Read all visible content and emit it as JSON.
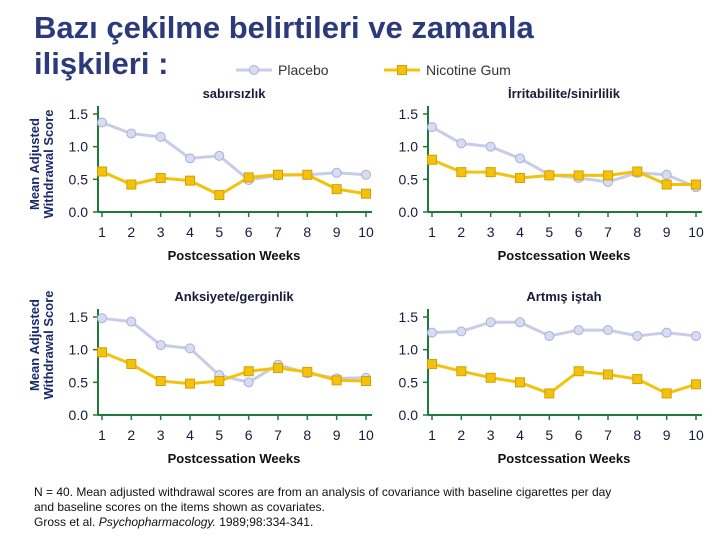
{
  "title_line1": "Bazı çekilme belirtileri ve zamanla",
  "title_line2": "ilişkileri :",
  "legend": {
    "placebo": "Placebo",
    "nicotine": "Nicotine Gum"
  },
  "y_axis_label_line1": "Mean Adjusted",
  "y_axis_label_line2": "Withdrawal Score",
  "colors": {
    "placebo": "#c8cce8",
    "placebo_marker": "#d8dcf2",
    "nicotine": "#f4c20d",
    "axis": "#1e7a3a",
    "title": "#2a3a7a",
    "tick_text": "#1a1a3a"
  },
  "footer": {
    "line1": "N = 40. Mean adjusted withdrawal scores are from an analysis of covariance with baseline cigarettes per day",
    "line2": "and baseline scores on the items shown as covariates.",
    "line3_prefix": "Gross et al. ",
    "line3_journal": "Psychopharmacology.",
    "line3_suffix": " 1989;98:334-341."
  },
  "chart_data": [
    {
      "type": "line",
      "title": "sabırsızlık",
      "xlabel": "Postcessation Weeks",
      "ylabel": "Mean Adjusted Withdrawal Score",
      "categories": [
        "1",
        "2",
        "3",
        "4",
        "5",
        "6",
        "7",
        "8",
        "9",
        "10"
      ],
      "yticks": [
        "0.0",
        "0.5",
        "1.0",
        "1.5"
      ],
      "ylim": [
        0,
        1.5
      ],
      "series": [
        {
          "name": "Placebo",
          "values": [
            1.37,
            1.2,
            1.15,
            0.82,
            0.86,
            0.49,
            0.56,
            0.57,
            0.6,
            0.57
          ]
        },
        {
          "name": "Nicotine Gum",
          "values": [
            0.62,
            0.42,
            0.52,
            0.48,
            0.26,
            0.53,
            0.57,
            0.57,
            0.35,
            0.28
          ]
        }
      ]
    },
    {
      "type": "line",
      "title": "İrritabilite/sinirlilik",
      "xlabel": "Postcessation Weeks",
      "ylabel": "Mean Adjusted Withdrawal Score",
      "categories": [
        "1",
        "2",
        "3",
        "4",
        "5",
        "6",
        "7",
        "8",
        "9",
        "10"
      ],
      "yticks": [
        "0.0",
        "0.5",
        "1.0",
        "1.5"
      ],
      "ylim": [
        0,
        1.5
      ],
      "series": [
        {
          "name": "Placebo",
          "values": [
            1.3,
            1.05,
            1.0,
            0.82,
            0.57,
            0.52,
            0.46,
            0.6,
            0.57,
            0.38
          ]
        },
        {
          "name": "Nicotine Gum",
          "values": [
            0.8,
            0.61,
            0.61,
            0.52,
            0.56,
            0.56,
            0.56,
            0.62,
            0.42,
            0.42
          ]
        }
      ]
    },
    {
      "type": "line",
      "title": "Anksiyete/gerginlik",
      "xlabel": "Postcessation Weeks",
      "ylabel": "Mean Adjusted Withdrawal Score",
      "categories": [
        "1",
        "2",
        "3",
        "4",
        "5",
        "6",
        "7",
        "8",
        "9",
        "10"
      ],
      "yticks": [
        "0.0",
        "0.5",
        "1.0",
        "1.5"
      ],
      "ylim": [
        0,
        1.5
      ],
      "series": [
        {
          "name": "Placebo",
          "values": [
            1.48,
            1.43,
            1.07,
            1.02,
            0.61,
            0.5,
            0.77,
            0.64,
            0.56,
            0.57
          ]
        },
        {
          "name": "Nicotine Gum",
          "values": [
            0.96,
            0.78,
            0.52,
            0.48,
            0.52,
            0.67,
            0.72,
            0.66,
            0.53,
            0.52
          ]
        }
      ]
    },
    {
      "type": "line",
      "title": "Artmış iştah",
      "xlabel": "Postcessation Weeks",
      "ylabel": "Mean Adjusted Withdrawal Score",
      "categories": [
        "1",
        "2",
        "3",
        "4",
        "5",
        "6",
        "7",
        "8",
        "9",
        "10"
      ],
      "yticks": [
        "0.0",
        "0.5",
        "1.0",
        "1.5"
      ],
      "ylim": [
        0,
        1.5
      ],
      "series": [
        {
          "name": "Placebo",
          "values": [
            1.26,
            1.28,
            1.42,
            1.42,
            1.21,
            1.3,
            1.3,
            1.21,
            1.26,
            1.21
          ]
        },
        {
          "name": "Nicotine Gum",
          "values": [
            0.78,
            0.67,
            0.57,
            0.5,
            0.33,
            0.67,
            0.62,
            0.55,
            0.33,
            0.47
          ]
        }
      ]
    }
  ]
}
